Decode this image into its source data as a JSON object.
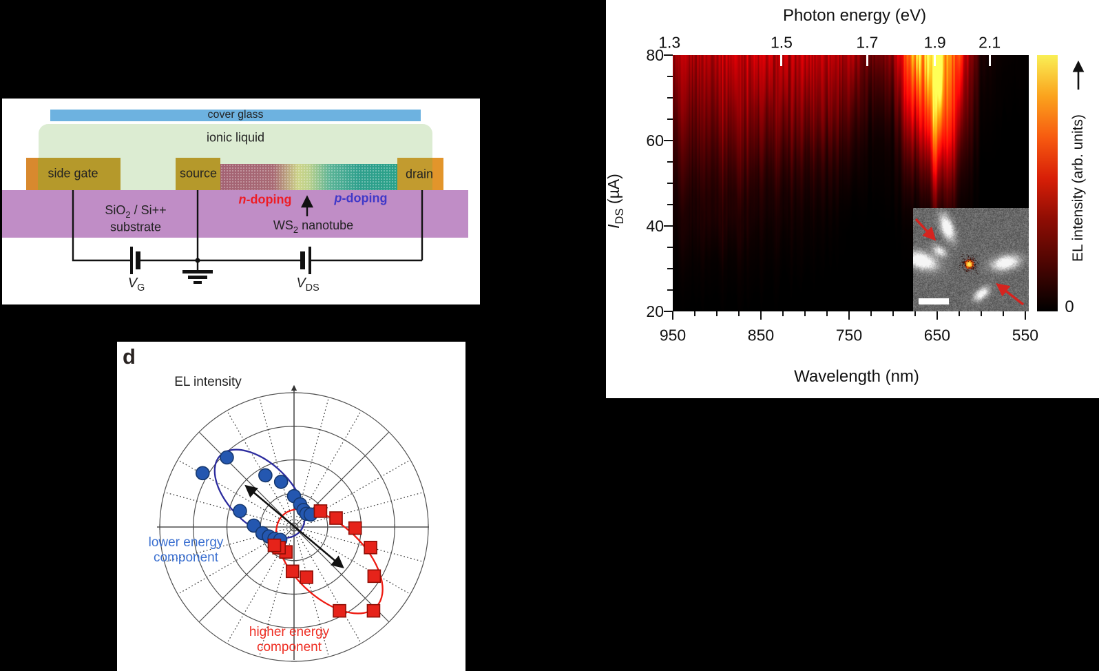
{
  "figure": {
    "background": "#000000",
    "panel_label_d": "d"
  },
  "schematic": {
    "cover_glass": "cover glass",
    "ionic_liquid": "ionic liquid",
    "side_gate": "side gate",
    "source": "source",
    "drain": "drain",
    "n_doping": {
      "prefix": "n",
      "rest": "-doping",
      "color": "#ee1c24"
    },
    "p_doping": {
      "prefix": "p",
      "rest": "-doping",
      "color": "#4038c8"
    },
    "substrate_line1": {
      "t1": "SiO",
      "sub": "2",
      "t2": " / Si++"
    },
    "substrate_line2": "substrate",
    "nanotube_label": {
      "t1": "WS",
      "sub": "2",
      "t2": " nanotube"
    },
    "gate_voltage": {
      "t1": "V",
      "sub": "G"
    },
    "drain_voltage": {
      "t1": "V",
      "sub": "DS"
    },
    "colors": {
      "cover_glass": "#6db2e0",
      "ionic_liquid": "#dcecd2",
      "electrode": "#b5992b",
      "electrode_accent": "#d8892e",
      "drain_accent": "#e2952b",
      "substrate": "#c08dc6",
      "nanotube_n": "#a36273",
      "nanotube_mid": "#ccd489",
      "nanotube_p": "#2aa189"
    }
  },
  "el_map": {
    "top_axis_title": "Photon energy (eV)",
    "bottom_axis_title": "Wavelength (nm)",
    "y_axis_label": {
      "t1": "I",
      "sub": "DS",
      "t2": " (µA)"
    },
    "colorbar_label": "EL intensity (arb. units)",
    "colorbar_zero": "0"
  },
  "polar": {
    "title": "EL intensity",
    "legend_lower": {
      "line1": "lower energy",
      "line2": "component",
      "color": "#3a6fd0"
    },
    "legend_higher": {
      "line1": "higher energy",
      "line2": "component",
      "color": "#ee2d22"
    }
  },
  "chart_data": [
    {
      "type": "heatmap",
      "title": "EL intensity map vs drain-source current",
      "xlabel_top": "Photon energy (eV)",
      "xlabel_bottom": "Wavelength (nm)",
      "ylabel": "IDS (uA)",
      "colorbar_label": "EL intensity (arb. units)",
      "colorbar_min_label": "0",
      "x_wavelength_nm": [
        950,
        925,
        900,
        875,
        850,
        825,
        800,
        775,
        750,
        725,
        700,
        675,
        650,
        625,
        600,
        575,
        550
      ],
      "y_current_uA": [
        80,
        75,
        70,
        65,
        60,
        55,
        50,
        45,
        40,
        35,
        30,
        25,
        20
      ],
      "x_axis_range_nm": [
        950,
        546
      ],
      "y_axis_range_uA": [
        20,
        80
      ],
      "top_ticks_eV": [
        "1.3",
        "1.5",
        "1.7",
        "1.9",
        "2.1"
      ],
      "bottom_ticks_nm": [
        "950",
        "850",
        "750",
        "650",
        "550"
      ],
      "left_ticks_uA": [
        "80",
        "60",
        "40",
        "20"
      ],
      "minor_tick_step_nm": 25,
      "minor_tick_step_uA": 5,
      "main_peak": {
        "wavelength_nm": 658,
        "photon_energy_eV": 1.88
      },
      "colorbar_colors_bottom_to_top": [
        "#000000",
        "#4a0502",
        "#8f0d04",
        "#d81f07",
        "#f75b10",
        "#fba31d",
        "#f9ef55"
      ],
      "intensity_0_100": [
        [
          30,
          34,
          38,
          40,
          38,
          35,
          37,
          39,
          33,
          22,
          30,
          88,
          100,
          58,
          7,
          2,
          1
        ],
        [
          26,
          30,
          34,
          36,
          34,
          31,
          33,
          34,
          27,
          15,
          22,
          74,
          100,
          48,
          5,
          1,
          1
        ],
        [
          22,
          26,
          30,
          32,
          30,
          27,
          28,
          29,
          21,
          10,
          15,
          60,
          94,
          40,
          3,
          1,
          0
        ],
        [
          18,
          22,
          26,
          27,
          25,
          22,
          23,
          24,
          15,
          6,
          9,
          46,
          84,
          31,
          2,
          0,
          0
        ],
        [
          14,
          18,
          21,
          22,
          20,
          17,
          18,
          17,
          10,
          3,
          5,
          32,
          68,
          22,
          1,
          0,
          0
        ],
        [
          11,
          14,
          16,
          17,
          15,
          12,
          12,
          11,
          6,
          2,
          3,
          20,
          48,
          14,
          0,
          0,
          0
        ],
        [
          8,
          10,
          12,
          12,
          10,
          8,
          8,
          7,
          3,
          1,
          2,
          11,
          30,
          8,
          0,
          0,
          0
        ],
        [
          5,
          7,
          9,
          8,
          7,
          5,
          5,
          4,
          1,
          0,
          1,
          5,
          17,
          4,
          0,
          0,
          0
        ],
        [
          4,
          6,
          8,
          7,
          5,
          4,
          3,
          2,
          0,
          0,
          0,
          2,
          8,
          2,
          0,
          0,
          0
        ],
        [
          2,
          4,
          5,
          4,
          3,
          2,
          2,
          1,
          0,
          0,
          0,
          1,
          3,
          1,
          0,
          0,
          0
        ],
        [
          1,
          2,
          2,
          2,
          2,
          1,
          1,
          0,
          0,
          0,
          0,
          0,
          1,
          0,
          0,
          0,
          0
        ],
        [
          0,
          1,
          1,
          1,
          1,
          0,
          0,
          0,
          0,
          0,
          0,
          0,
          0,
          0,
          0,
          0,
          0
        ],
        [
          0,
          0,
          0,
          0,
          0,
          0,
          0,
          0,
          0,
          0,
          0,
          0,
          0,
          0,
          0,
          0,
          0
        ]
      ]
    },
    {
      "type": "scatter-polar",
      "title": "EL intensity",
      "r_gridlines": [
        0.25,
        0.5,
        0.75,
        1.0
      ],
      "angle_grid_step_deg": 15,
      "solid_spoke_step_deg": 45,
      "series": [
        {
          "name": "lower energy component",
          "marker": "circle",
          "color": "#2457b0",
          "points_angle_r": [
            [
              149.5,
              0.79
            ],
            [
              134,
              0.72
            ],
            [
              119,
              0.44
            ],
            [
              106,
              0.35
            ],
            [
              90,
              0.23
            ],
            [
              75,
              0.175
            ],
            [
              61,
              0.145
            ],
            [
              47,
              0.135
            ],
            [
              37,
              0.155
            ],
            [
              163.5,
              0.42
            ],
            [
              178,
              0.3
            ],
            [
              191,
              0.24
            ],
            [
              200.5,
              0.2
            ],
            [
              211,
              0.17
            ],
            [
              223,
              0.14
            ]
          ]
        },
        {
          "name": "higher energy component",
          "marker": "square",
          "color": "#e6231a",
          "points_angle_r": [
            [
              31,
              0.23
            ],
            [
              12,
              0.32
            ],
            [
              -1,
              0.455
            ],
            [
              -15,
              0.59
            ],
            [
              -31.5,
              0.7
            ],
            [
              -46.5,
              0.86
            ],
            [
              -61.5,
              0.71
            ],
            [
              -76,
              0.385
            ],
            [
              -92,
              0.33
            ],
            [
              -108,
              0.195
            ],
            [
              -126,
              0.19
            ],
            [
              -137,
              0.2
            ]
          ]
        }
      ],
      "fit_ellipses": [
        {
          "series": "lower energy component",
          "color": "#2b2b9e",
          "axis_angle_deg": 136,
          "center_r": 0.355,
          "semi_major_r": 0.41,
          "semi_minor_r": 0.23
        },
        {
          "series": "higher energy component",
          "color": "#ee1b12",
          "axis_angle_deg": -44,
          "center_r": 0.366,
          "semi_major_r": 0.487,
          "semi_minor_r": 0.267
        }
      ],
      "polarization_axis_arrow": {
        "angle1_deg": 139.5,
        "angle2_deg": -39.5,
        "r": 0.47
      }
    }
  ]
}
